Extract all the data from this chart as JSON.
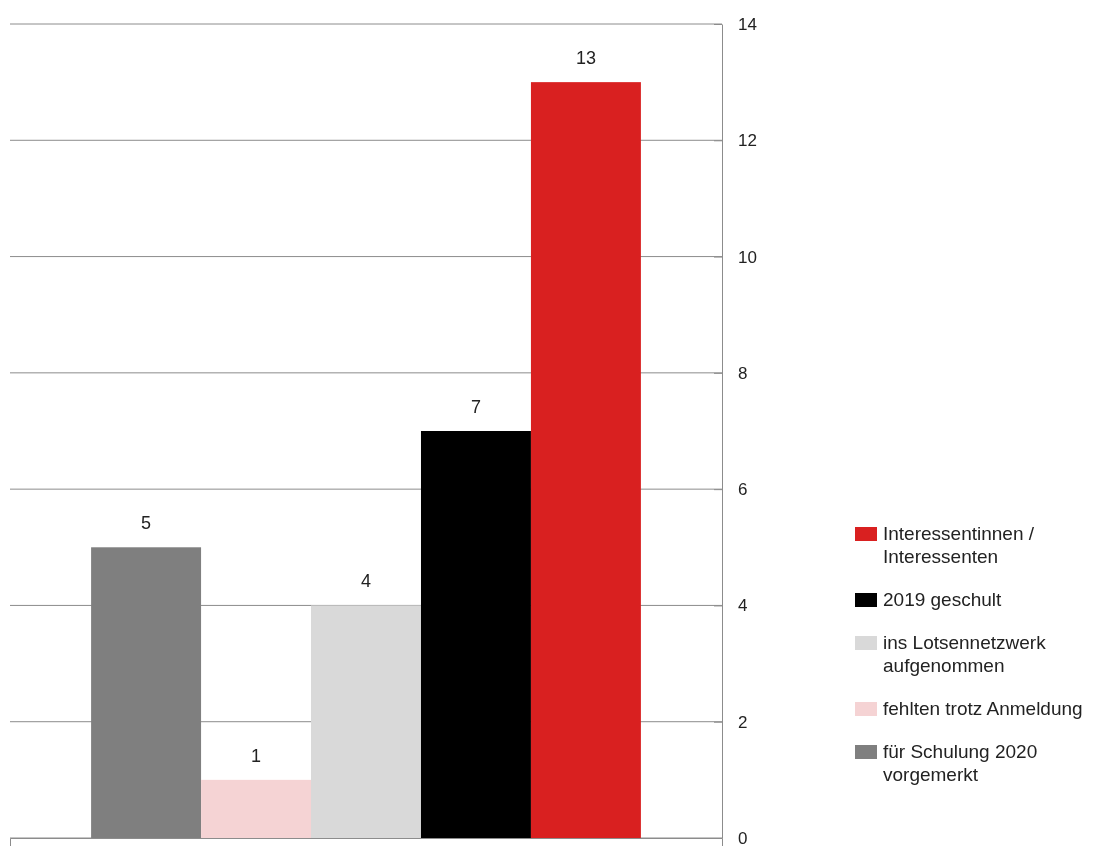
{
  "chart_data": {
    "type": "bar",
    "categories": [
      null
    ],
    "series": [
      {
        "name": "für Schulung 2020 vorgemerkt",
        "color": "#7f7f7f",
        "values": [
          5
        ]
      },
      {
        "name": "fehlten trotz Anmeldung",
        "color": "#f5d3d4",
        "values": [
          1
        ]
      },
      {
        "name": "ins Lotsennetzwerk aufgenommen",
        "color": "#d9d9d9",
        "values": [
          4
        ]
      },
      {
        "name": "2019 geschult",
        "color": "#000000",
        "values": [
          7
        ]
      },
      {
        "name": "Interessentinnen / Interessenten",
        "color": "#d92020",
        "values": [
          13
        ]
      }
    ],
    "ylim": [
      0,
      14
    ],
    "yticks": [
      0,
      2,
      4,
      6,
      8,
      10,
      12,
      14
    ],
    "grid": "y",
    "legend": "right",
    "data_labels": true
  }
}
